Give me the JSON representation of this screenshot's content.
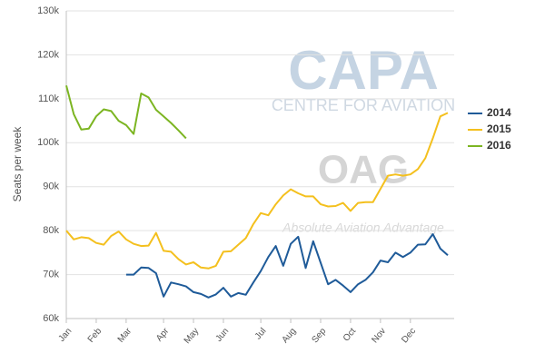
{
  "chart_data": {
    "type": "line",
    "y_label": "Seats per week",
    "watermark": [
      "CAPA",
      "CENTRE FOR AVIATION",
      "OAG",
      "Absolute Aviation Advantage"
    ],
    "categories": [
      "Jan",
      null,
      null,
      null,
      "Feb",
      null,
      null,
      null,
      "Mar",
      null,
      null,
      null,
      null,
      "Apr",
      null,
      null,
      null,
      "May",
      null,
      null,
      null,
      "Jun",
      null,
      null,
      null,
      null,
      "Jul",
      null,
      null,
      null,
      "Aug",
      null,
      null,
      null,
      "Sep",
      null,
      null,
      null,
      "Oct",
      null,
      null,
      null,
      "Nov",
      null,
      null,
      null,
      "Dec",
      null,
      null,
      null,
      null,
      null
    ],
    "series": [
      {
        "name": "2014",
        "color": "#1f5b99",
        "values": [
          null,
          null,
          null,
          null,
          null,
          null,
          null,
          null,
          70000,
          70000,
          71600,
          71500,
          70300,
          65000,
          68200,
          67800,
          67300,
          66000,
          65600,
          64800,
          65500,
          67000,
          65000,
          65800,
          65400,
          68200,
          70800,
          74000,
          76500,
          72000,
          77000,
          78600,
          71500,
          77600,
          72700,
          67800,
          68800,
          67500,
          66000,
          67800,
          68800,
          70500,
          73200,
          72800,
          75000,
          74000,
          75000,
          76800,
          76900,
          79200,
          75900,
          74400
        ]
      },
      {
        "name": "2015",
        "color": "#f4c01e",
        "values": [
          80000,
          78000,
          78500,
          78300,
          77200,
          76800,
          78800,
          79800,
          78000,
          77000,
          76500,
          76600,
          79500,
          75400,
          75200,
          73500,
          72300,
          72800,
          71600,
          71400,
          72000,
          75200,
          75300,
          76800,
          78300,
          81500,
          84000,
          83500,
          86000,
          88000,
          89400,
          88500,
          87800,
          87800,
          86000,
          85500,
          85600,
          86300,
          84500,
          86300,
          86500,
          86500,
          89500,
          92500,
          92800,
          92500,
          92800,
          94000,
          96500,
          101000,
          106000,
          106800
        ]
      },
      {
        "name": "2016",
        "color": "#7cb522",
        "values": [
          113000,
          106500,
          103000,
          103200,
          106000,
          107600,
          107200,
          105000,
          104000,
          102000,
          111200,
          110300,
          107500,
          106000,
          104500,
          102800,
          101000,
          null,
          null,
          null,
          null,
          null,
          null,
          null,
          null,
          null,
          null,
          null,
          null,
          null,
          null,
          null,
          null,
          null,
          null,
          null,
          null,
          null,
          null,
          null,
          null,
          null,
          null,
          null,
          null,
          null,
          null,
          null,
          null,
          null,
          null,
          null
        ]
      }
    ],
    "ylim": [
      60000,
      130000
    ],
    "yticks": [
      {
        "value": 60000,
        "label": "60k"
      },
      {
        "value": 70000,
        "label": "70k"
      },
      {
        "value": 80000,
        "label": "80k"
      },
      {
        "value": 90000,
        "label": "90k"
      },
      {
        "value": 100000,
        "label": "100k"
      },
      {
        "value": 110000,
        "label": "110k"
      },
      {
        "value": 120000,
        "label": "120k"
      },
      {
        "value": 130000,
        "label": "130k"
      }
    ],
    "grid": true,
    "legend": "right"
  }
}
